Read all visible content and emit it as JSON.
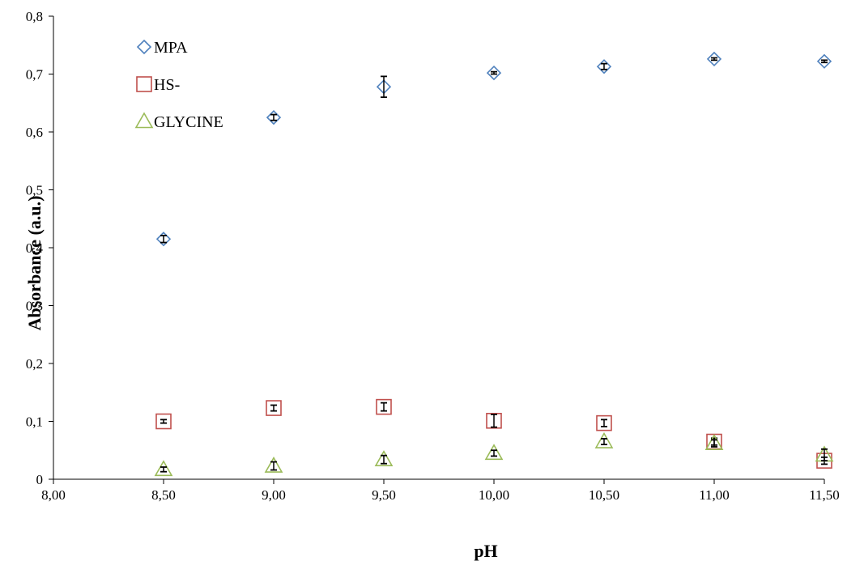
{
  "chart_data": {
    "type": "scatter",
    "title": "",
    "xlabel": "pH",
    "ylabel": "Absorbance (a.u.)",
    "xlim": [
      8.0,
      11.5
    ],
    "ylim": [
      0,
      0.8
    ],
    "x_ticks": [
      "8,00",
      "8,50",
      "9,00",
      "9,50",
      "10,00",
      "10,50",
      "11,00",
      "11,50"
    ],
    "y_ticks": [
      "0",
      "0,1",
      "0,2",
      "0,3",
      "0,4",
      "0,5",
      "0,6",
      "0,7",
      "0,8"
    ],
    "grid": false,
    "legend_position": "top-left",
    "x": [
      8.5,
      9.0,
      9.5,
      10.0,
      10.5,
      11.0,
      11.5
    ],
    "series": [
      {
        "name": "MPA",
        "marker": "diamond",
        "color": "#4F81BD",
        "values": [
          0.415,
          0.625,
          0.678,
          0.702,
          0.713,
          0.726,
          0.722
        ],
        "errors": [
          0.006,
          0.005,
          0.018,
          0.002,
          0.005,
          0.002,
          0.002
        ]
      },
      {
        "name": "HS-",
        "marker": "square",
        "color": "#C0504D",
        "values": [
          0.1,
          0.123,
          0.125,
          0.101,
          0.097,
          0.065,
          0.032
        ],
        "errors": [
          0.003,
          0.005,
          0.007,
          0.011,
          0.006,
          0.006,
          0.006
        ]
      },
      {
        "name": "GLYCINE",
        "marker": "triangle",
        "color": "#9BBB59",
        "values": [
          0.017,
          0.023,
          0.034,
          0.045,
          0.065,
          0.062,
          0.042
        ],
        "errors": [
          0.004,
          0.007,
          0.007,
          0.005,
          0.005,
          0.006,
          0.01
        ]
      }
    ]
  }
}
